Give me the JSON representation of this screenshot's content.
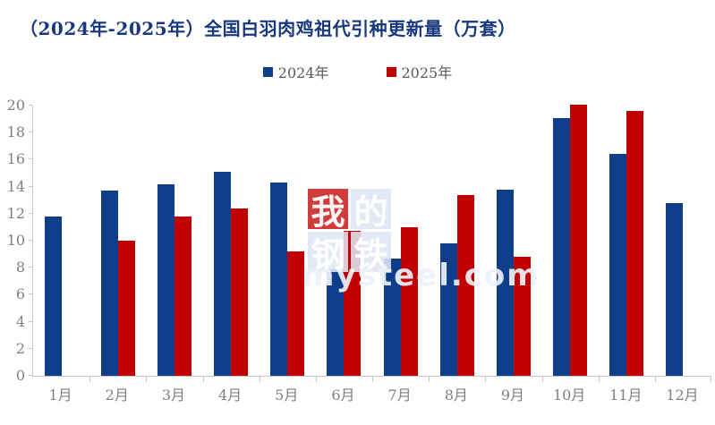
{
  "title": "（2024年-2025年）全国白羽肉鸡祖代引种更新量（万套）",
  "legend": {
    "items": [
      {
        "label": "2024年",
        "color": "#0e3d8a"
      },
      {
        "label": "2025年",
        "color": "#c00000"
      }
    ]
  },
  "watermark": {
    "chars": [
      "我",
      "的",
      "钢",
      "铁"
    ],
    "url_text": "mysteel.com"
  },
  "colors": {
    "title_text": "#17387e",
    "axis_line": "#c6c6c6",
    "axis_text": "#7f7f7f",
    "legend_text": "#595959",
    "series_2024": "#0e3d8a",
    "series_2025": "#c00000"
  },
  "chart_data": {
    "type": "bar",
    "title": "（2024年-2025年）全国白羽肉鸡祖代引种更新量（万套）",
    "categories": [
      "1月",
      "2月",
      "3月",
      "4月",
      "5月",
      "6月",
      "7月",
      "8月",
      "9月",
      "10月",
      "11月",
      "12月"
    ],
    "series": [
      {
        "name": "2024年",
        "color": "#0e3d8a",
        "values": [
          11.8,
          13.7,
          14.2,
          15.1,
          14.3,
          7.9,
          8.7,
          9.8,
          13.8,
          19.1,
          16.4,
          12.8
        ]
      },
      {
        "name": "2025年",
        "color": "#c00000",
        "values": [
          null,
          10.0,
          11.8,
          12.4,
          9.2,
          10.7,
          11.0,
          13.4,
          8.8,
          20.1,
          19.6,
          null
        ]
      }
    ],
    "xlabel": "",
    "ylabel": "",
    "ylim": [
      0,
      20
    ],
    "yticks": [
      0,
      2,
      4,
      6,
      8,
      10,
      12,
      14,
      16,
      18,
      20
    ],
    "grid": false,
    "legend_position": "top"
  }
}
